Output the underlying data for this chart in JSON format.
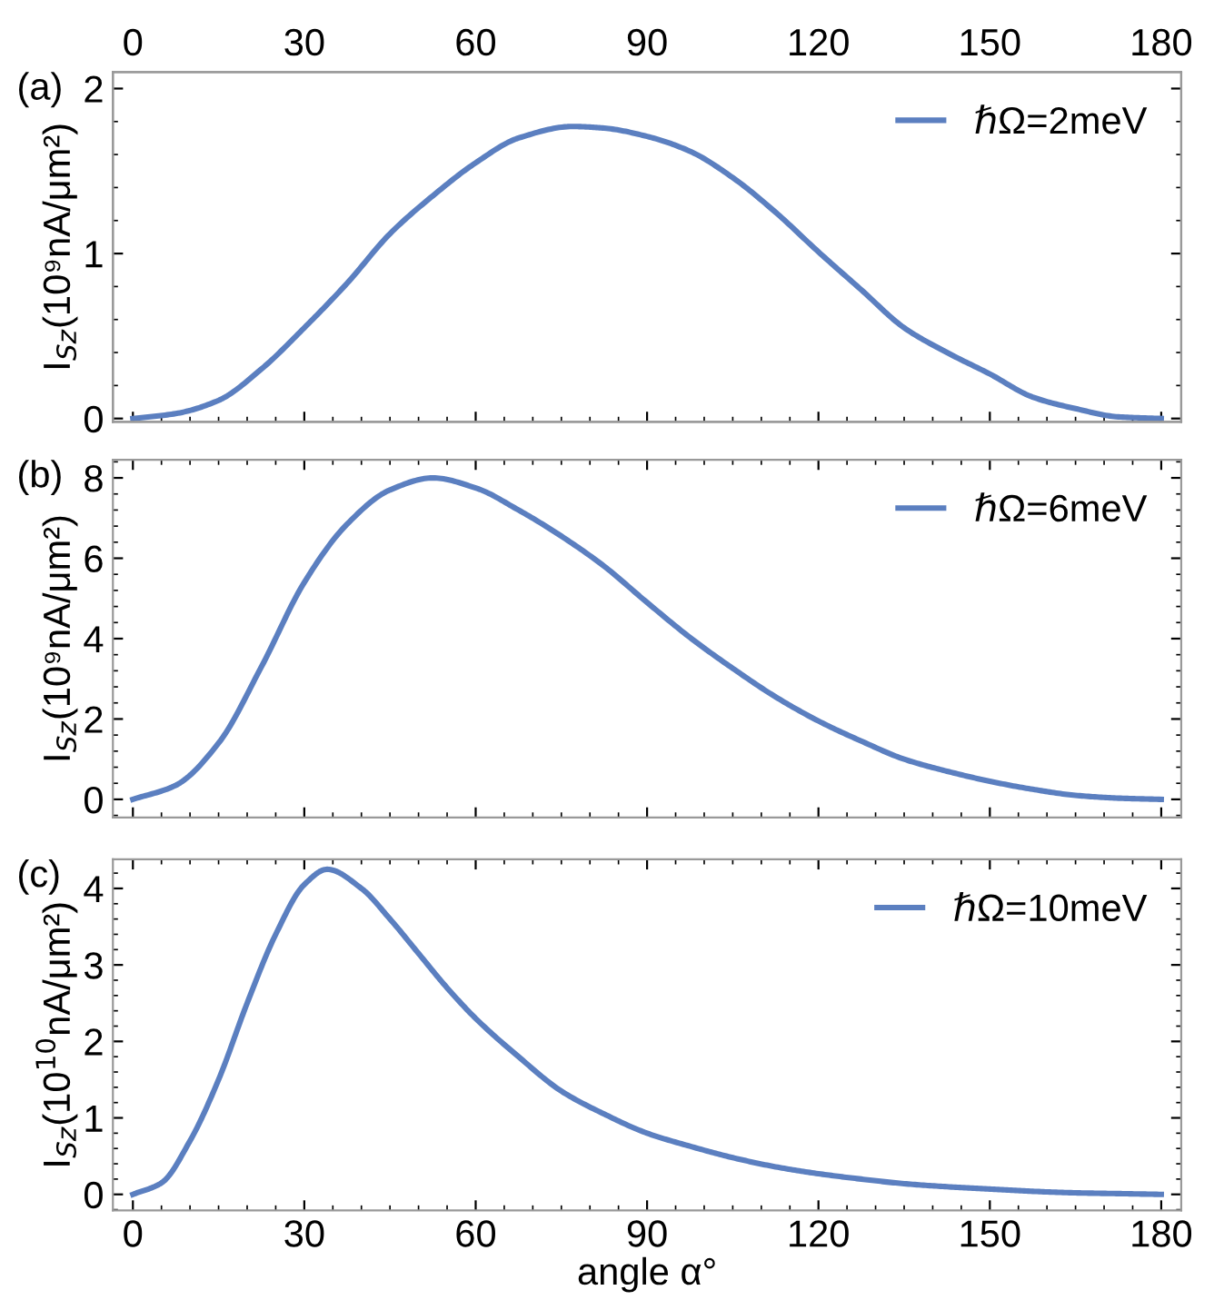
{
  "chart_data": [
    {
      "type": "line",
      "annotations": [
        "(a)"
      ],
      "ylabel": "I$_{Sz}$(10⁹nA/μm²)",
      "xlim": [
        -3.5,
        183.5
      ],
      "xticks": [
        0,
        30,
        60,
        90,
        120,
        150,
        180
      ],
      "x2lim": [
        -3.5,
        183.5
      ],
      "x2ticks": [
        0,
        30,
        60,
        90,
        120,
        150,
        180
      ],
      "tick_labels": "y",
      "ylim": [
        -0.02,
        2.1
      ],
      "yticks": [
        0,
        1,
        2
      ],
      "grid": false,
      "legend": "top right",
      "x": [
        0,
        7.5,
        15,
        22.5,
        30,
        37.5,
        45,
        52.5,
        60,
        67.5,
        77,
        82.5,
        90,
        97.5,
        105,
        112.5,
        120,
        127.5,
        135,
        142.5,
        150,
        157.5,
        165,
        172.5,
        180
      ],
      "series": [
        {
          "name": "ℏΩ=2meV",
          "color": "#5b7fc0",
          "values": [
            0,
            0.03,
            0.11,
            0.3,
            0.55,
            0.82,
            1.12,
            1.35,
            1.55,
            1.7,
            1.77,
            1.76,
            1.71,
            1.62,
            1.46,
            1.25,
            1.01,
            0.78,
            0.55,
            0.4,
            0.27,
            0.13,
            0.06,
            0.01,
            0
          ]
        }
      ]
    },
    {
      "type": "line",
      "annotations": [
        "(b)"
      ],
      "ylabel": "I$_{Sz}$(10⁹nA/μm²)",
      "xlim": [
        -3.5,
        183.5
      ],
      "xticks": [
        0,
        30,
        60,
        90,
        120,
        150,
        180
      ],
      "tick_labels": "y",
      "ylim": [
        -0.45,
        8.45
      ],
      "yticks": [
        0,
        2,
        4,
        6,
        8
      ],
      "grid": false,
      "legend": "top right",
      "x": [
        0,
        7.5,
        15,
        22.5,
        30,
        37.5,
        45,
        52.5,
        60,
        67.5,
        75,
        82.5,
        90,
        97.5,
        105,
        112.5,
        120,
        127.5,
        135,
        142.5,
        150,
        157.5,
        165,
        172.5,
        180
      ],
      "series": [
        {
          "name": "ℏΩ=6meV",
          "color": "#5b7fc0",
          "values": [
            0,
            0.35,
            1.4,
            3.3,
            5.4,
            6.85,
            7.7,
            8.0,
            7.75,
            7.2,
            6.55,
            5.8,
            4.9,
            4.03,
            3.26,
            2.55,
            1.95,
            1.45,
            1.0,
            0.7,
            0.45,
            0.25,
            0.1,
            0.03,
            0
          ]
        }
      ]
    },
    {
      "type": "line",
      "annotations": [
        "(c)"
      ],
      "ylabel": "I$_{Sz}$(10$^{10}$nA/μm²)",
      "xlabel": "angle α°",
      "xlim": [
        -3.5,
        183.5
      ],
      "xticks": [
        0,
        30,
        60,
        90,
        120,
        150,
        180
      ],
      "ylim": [
        -0.21,
        4.38
      ],
      "yticks": [
        0,
        1,
        2,
        3,
        4
      ],
      "grid": false,
      "legend": "top right",
      "x": [
        0,
        5,
        10,
        15,
        20,
        25,
        30,
        34,
        40,
        45,
        50,
        55,
        60,
        67.5,
        75,
        82.5,
        90,
        97.5,
        105,
        112.5,
        120,
        127.5,
        135,
        142.5,
        150,
        157.5,
        165,
        172.5,
        180
      ],
      "series": [
        {
          "name": "ℏΩ=10meV",
          "color": "#5b7fc0",
          "values": [
            0,
            0.15,
            0.7,
            1.5,
            2.5,
            3.4,
            4.05,
            4.25,
            4.0,
            3.6,
            3.15,
            2.7,
            2.3,
            1.8,
            1.35,
            1.05,
            0.8,
            0.63,
            0.48,
            0.36,
            0.27,
            0.2,
            0.14,
            0.1,
            0.07,
            0.04,
            0.02,
            0.01,
            0
          ]
        }
      ]
    }
  ]
}
